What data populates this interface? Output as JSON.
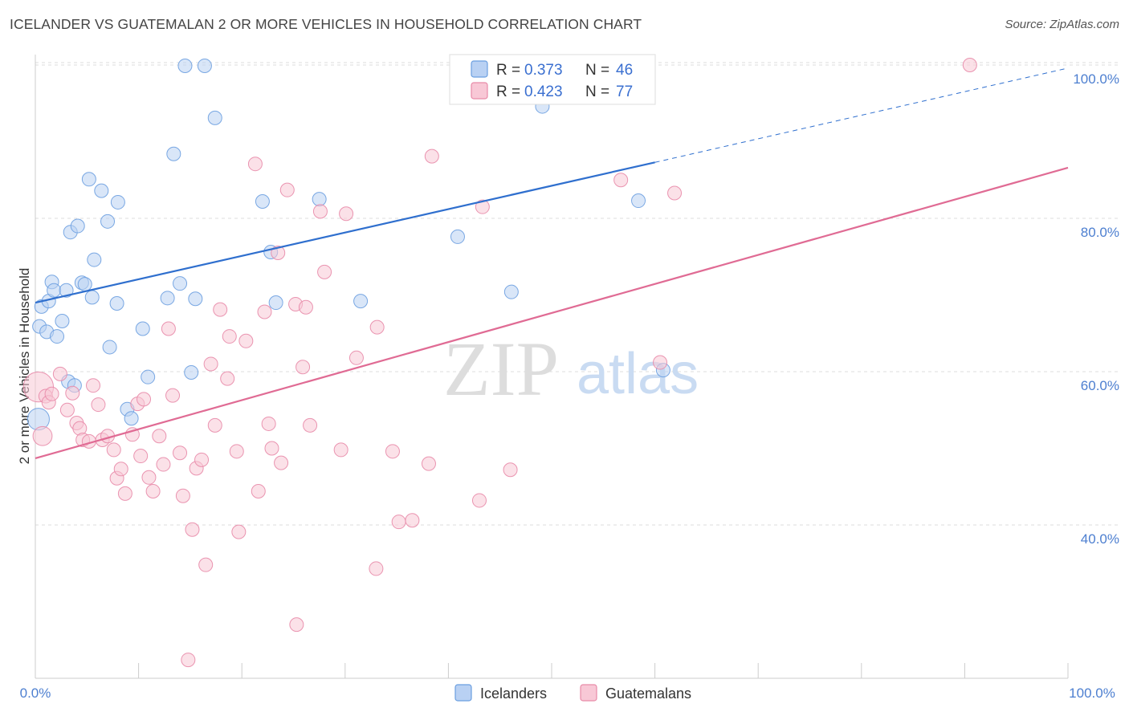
{
  "header": {
    "title": "ICELANDER VS GUATEMALAN 2 OR MORE VEHICLES IN HOUSEHOLD CORRELATION CHART",
    "source": "Source: ZipAtlas.com"
  },
  "watermark": {
    "part1": "ZIP",
    "part2": "atlas"
  },
  "colors": {
    "icelanders": "#6b9fe0",
    "icelanders_fill": "#b9d1f3",
    "icelanders_line": "#2f6fce",
    "guatemalans": "#e88aa8",
    "guatemalans_fill": "#f8c8d6",
    "guatemalans_line": "#e06b94",
    "grid": "#dddddd",
    "tick_label": "#4d7fd0"
  },
  "legend": {
    "rows": [
      {
        "r_label": "R = ",
        "r_value": "0.373",
        "n_label": "N = ",
        "n_value": "46"
      },
      {
        "r_label": "R = ",
        "r_value": "0.423",
        "n_label": "N = ",
        "n_value": "77"
      }
    ]
  },
  "bottom_legend": [
    "Icelanders",
    "Guatemalans"
  ],
  "chart_data": {
    "type": "scatter",
    "title": "ICELANDER VS GUATEMALAN 2 OR MORE VEHICLES IN HOUSEHOLD CORRELATION CHART",
    "xlabel": "",
    "ylabel": "2 or more Vehicles in Household",
    "xlim": [
      0,
      100
    ],
    "ylim": [
      20,
      102
    ],
    "x_tick_labels": [
      "0.0%",
      "100.0%"
    ],
    "y_ticks": [
      40,
      60,
      80,
      100
    ],
    "y_tick_labels": [
      "40.0%",
      "60.0%",
      "80.0%",
      "100.0%"
    ],
    "x_minor_ticks": [
      0,
      10,
      20,
      30,
      40,
      50,
      60,
      70,
      80,
      90,
      100
    ],
    "legend_position": "top-center",
    "series": [
      {
        "name": "Icelanders",
        "R": 0.373,
        "N": 46,
        "trend": {
          "x0": 0,
          "y0": 69.0,
          "x1": 60,
          "y1": 87.3,
          "dashed_to_x": 100,
          "dashed_to_y": 99.6
        },
        "points": [
          [
            0.3,
            53.8,
            1.6
          ],
          [
            0.4,
            65.9,
            1
          ],
          [
            0.6,
            68.5,
            1
          ],
          [
            1.1,
            65.2,
            1
          ],
          [
            1.3,
            69.2,
            1
          ],
          [
            1.6,
            71.7,
            1
          ],
          [
            1.8,
            70.6,
            1
          ],
          [
            2.1,
            64.6,
            1
          ],
          [
            2.6,
            66.6,
            1
          ],
          [
            3.0,
            70.6,
            1
          ],
          [
            3.2,
            58.7,
            1
          ],
          [
            3.4,
            78.2,
            1
          ],
          [
            3.8,
            58.2,
            1
          ],
          [
            4.1,
            79.0,
            1
          ],
          [
            4.5,
            71.6,
            1
          ],
          [
            4.8,
            71.4,
            1
          ],
          [
            5.2,
            85.1,
            1
          ],
          [
            5.5,
            69.7,
            1
          ],
          [
            5.7,
            74.6,
            1
          ],
          [
            6.4,
            83.6,
            1
          ],
          [
            7.0,
            79.6,
            1
          ],
          [
            7.2,
            63.2,
            1
          ],
          [
            7.9,
            68.9,
            1
          ],
          [
            8.0,
            82.1,
            1
          ],
          [
            8.9,
            55.1,
            1
          ],
          [
            9.3,
            53.9,
            1
          ],
          [
            10.4,
            65.6,
            1
          ],
          [
            10.9,
            59.3,
            1
          ],
          [
            12.8,
            69.6,
            1
          ],
          [
            13.4,
            88.4,
            1
          ],
          [
            14.0,
            71.5,
            1
          ],
          [
            14.5,
            99.9,
            1
          ],
          [
            15.1,
            59.9,
            1
          ],
          [
            15.5,
            69.5,
            1
          ],
          [
            16.4,
            99.9,
            1
          ],
          [
            17.4,
            93.1,
            1
          ],
          [
            22.0,
            82.2,
            1
          ],
          [
            22.8,
            75.6,
            1
          ],
          [
            23.3,
            69.0,
            1
          ],
          [
            27.5,
            82.5,
            1
          ],
          [
            31.5,
            69.2,
            1
          ],
          [
            40.9,
            77.6,
            1
          ],
          [
            46.1,
            70.4,
            1
          ],
          [
            49.1,
            94.6,
            1
          ],
          [
            58.4,
            82.3,
            1
          ],
          [
            60.8,
            60.2,
            1
          ]
        ]
      },
      {
        "name": "Guatemalans",
        "R": 0.423,
        "N": 77,
        "trend": {
          "x0": 0,
          "y0": 48.7,
          "x1": 100,
          "y1": 86.6
        },
        "points": [
          [
            0.3,
            58.0,
            2.2
          ],
          [
            0.7,
            51.6,
            1.4
          ],
          [
            1.0,
            56.8,
            1
          ],
          [
            1.3,
            56.0,
            1
          ],
          [
            1.6,
            57.1,
            1
          ],
          [
            2.4,
            59.7,
            1
          ],
          [
            3.1,
            55.0,
            1
          ],
          [
            3.6,
            57.2,
            1
          ],
          [
            4.0,
            53.3,
            1
          ],
          [
            4.3,
            52.6,
            1
          ],
          [
            4.6,
            51.1,
            1
          ],
          [
            5.2,
            50.9,
            1
          ],
          [
            5.6,
            58.2,
            1
          ],
          [
            6.1,
            55.7,
            1
          ],
          [
            6.5,
            51.1,
            1
          ],
          [
            7.0,
            51.6,
            1
          ],
          [
            7.6,
            49.8,
            1
          ],
          [
            7.9,
            46.1,
            1
          ],
          [
            8.3,
            47.3,
            1
          ],
          [
            8.7,
            44.1,
            1
          ],
          [
            9.4,
            51.8,
            1
          ],
          [
            9.9,
            55.8,
            1
          ],
          [
            10.2,
            49.0,
            1
          ],
          [
            10.5,
            56.4,
            1
          ],
          [
            11.0,
            46.2,
            1
          ],
          [
            11.4,
            44.4,
            1
          ],
          [
            12.0,
            51.6,
            1
          ],
          [
            12.4,
            47.9,
            1
          ],
          [
            12.9,
            65.6,
            1
          ],
          [
            13.3,
            56.9,
            1
          ],
          [
            14.0,
            49.4,
            1
          ],
          [
            14.3,
            43.8,
            1
          ],
          [
            14.8,
            22.4,
            1
          ],
          [
            15.2,
            39.4,
            1
          ],
          [
            15.6,
            47.4,
            1
          ],
          [
            16.1,
            48.5,
            1
          ],
          [
            16.5,
            34.8,
            1
          ],
          [
            17.0,
            61.0,
            1
          ],
          [
            17.4,
            53.0,
            1
          ],
          [
            17.9,
            68.1,
            1
          ],
          [
            18.6,
            59.1,
            1
          ],
          [
            18.8,
            64.6,
            1
          ],
          [
            19.5,
            49.6,
            1
          ],
          [
            19.7,
            39.1,
            1
          ],
          [
            20.4,
            64.0,
            1
          ],
          [
            21.3,
            87.1,
            1
          ],
          [
            21.6,
            44.4,
            1
          ],
          [
            22.2,
            67.8,
            1
          ],
          [
            22.6,
            53.2,
            1
          ],
          [
            22.9,
            50.0,
            1
          ],
          [
            23.5,
            75.5,
            1
          ],
          [
            23.8,
            48.1,
            1
          ],
          [
            24.4,
            83.7,
            1
          ],
          [
            25.2,
            68.8,
            1
          ],
          [
            25.3,
            27.0,
            1
          ],
          [
            25.9,
            60.6,
            1
          ],
          [
            26.2,
            68.4,
            1
          ],
          [
            26.6,
            53.0,
            1
          ],
          [
            27.6,
            80.9,
            1
          ],
          [
            28.0,
            73.0,
            1
          ],
          [
            29.6,
            49.8,
            1
          ],
          [
            30.1,
            80.6,
            1
          ],
          [
            31.1,
            61.8,
            1
          ],
          [
            33.0,
            34.3,
            1
          ],
          [
            33.1,
            65.8,
            1
          ],
          [
            34.6,
            49.6,
            1
          ],
          [
            35.2,
            40.4,
            1
          ],
          [
            36.5,
            40.6,
            1
          ],
          [
            38.1,
            48.0,
            1
          ],
          [
            38.4,
            88.1,
            1
          ],
          [
            43.0,
            43.2,
            1
          ],
          [
            43.3,
            81.5,
            1
          ],
          [
            46.0,
            47.2,
            1
          ],
          [
            56.7,
            85.0,
            1
          ],
          [
            60.5,
            61.2,
            1
          ],
          [
            61.9,
            83.3,
            1
          ],
          [
            90.5,
            100.0,
            1
          ]
        ]
      }
    ]
  }
}
